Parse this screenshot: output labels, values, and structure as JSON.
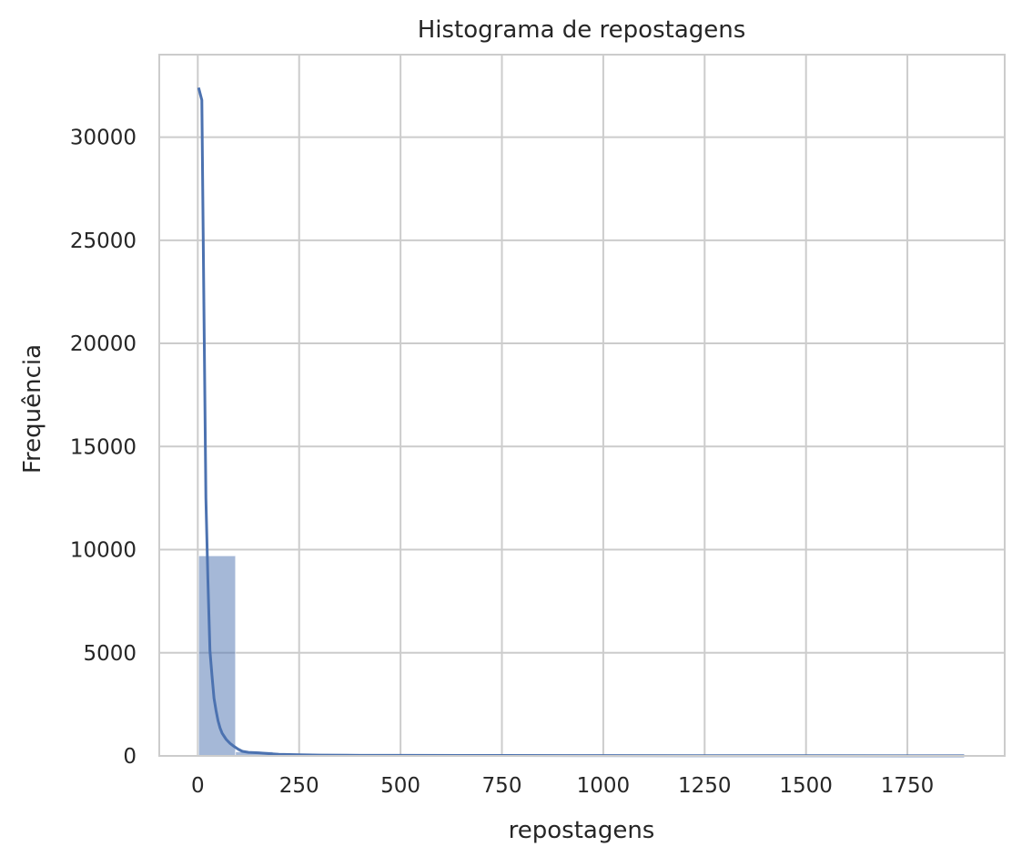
{
  "chart_data": {
    "type": "bar",
    "title": "Histograma de repostagens",
    "xlabel": "repostagens",
    "ylabel": "Frequência",
    "xlim": [
      -95,
      1990
    ],
    "ylim": [
      0,
      34000
    ],
    "xticks": [
      0,
      250,
      500,
      750,
      1000,
      1250,
      1500,
      1750
    ],
    "yticks": [
      0,
      5000,
      10000,
      15000,
      20000,
      25000,
      30000
    ],
    "grid": true,
    "bar_color": "#4c72b0",
    "bar_opacity": 0.5,
    "kde_color": "#4c72b0",
    "bins": [
      {
        "x0": 2,
        "x1": 93,
        "count": 9700
      },
      {
        "x0": 93,
        "x1": 185,
        "count": 200
      },
      {
        "x0": 185,
        "x1": 277,
        "count": 60
      },
      {
        "x0": 277,
        "x1": 369,
        "count": 30
      },
      {
        "x0": 369,
        "x1": 461,
        "count": 15
      },
      {
        "x0": 461,
        "x1": 553,
        "count": 10
      },
      {
        "x0": 553,
        "x1": 645,
        "count": 8
      },
      {
        "x0": 645,
        "x1": 737,
        "count": 5
      },
      {
        "x0": 737,
        "x1": 829,
        "count": 4
      },
      {
        "x0": 829,
        "x1": 921,
        "count": 3
      },
      {
        "x0": 921,
        "x1": 1013,
        "count": 3
      },
      {
        "x0": 1013,
        "x1": 1105,
        "count": 2
      },
      {
        "x0": 1105,
        "x1": 1197,
        "count": 2
      },
      {
        "x0": 1197,
        "x1": 1289,
        "count": 2
      },
      {
        "x0": 1289,
        "x1": 1381,
        "count": 1
      },
      {
        "x0": 1381,
        "x1": 1473,
        "count": 1
      },
      {
        "x0": 1473,
        "x1": 1565,
        "count": 1
      },
      {
        "x0": 1565,
        "x1": 1657,
        "count": 1
      },
      {
        "x0": 1657,
        "x1": 1749,
        "count": 1
      },
      {
        "x0": 1749,
        "x1": 1841,
        "count": 1
      },
      {
        "x0": 1841,
        "x1": 1890,
        "count": 1
      }
    ],
    "kde": {
      "x": [
        2,
        10,
        15,
        20,
        25,
        30,
        35,
        40,
        45,
        50,
        55,
        60,
        65,
        70,
        75,
        80,
        90,
        100,
        110,
        125,
        150,
        175,
        200,
        250,
        300,
        400,
        500,
        750,
        1000,
        1250,
        1500,
        1750,
        1890
      ],
      "y": [
        32400,
        31800,
        22000,
        12500,
        8500,
        5100,
        3900,
        2800,
        2200,
        1700,
        1350,
        1100,
        950,
        800,
        700,
        600,
        450,
        320,
        220,
        170,
        150,
        110,
        80,
        55,
        40,
        30,
        25,
        20,
        15,
        12,
        10,
        8,
        8
      ]
    }
  }
}
